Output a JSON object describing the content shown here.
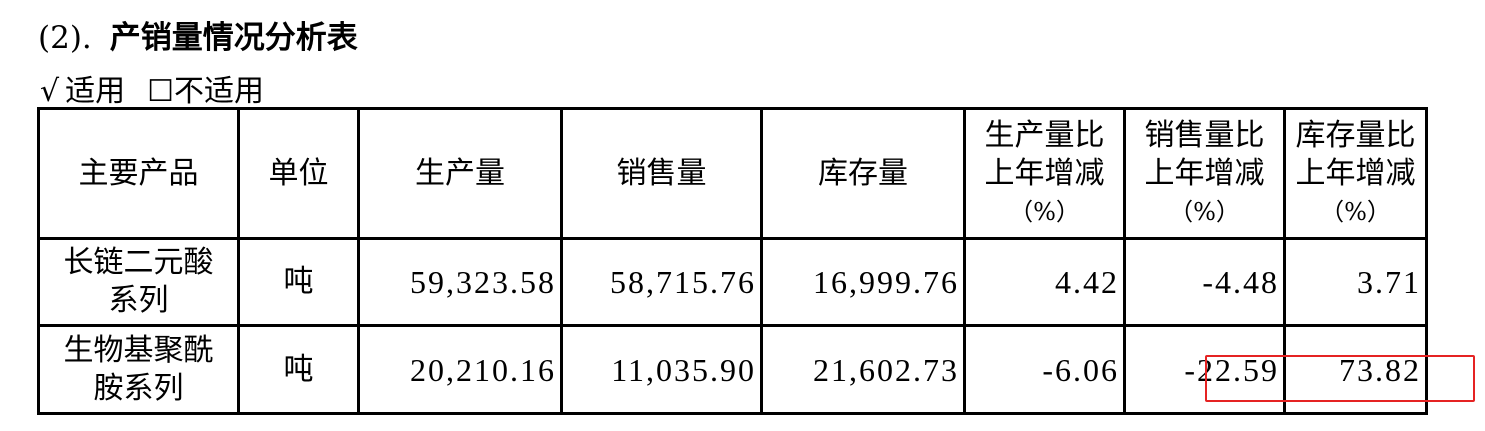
{
  "title": {
    "number": "(2).",
    "text": "产销量情况分析表"
  },
  "applicability": {
    "applicable_mark": "√",
    "applicable_label": "适用",
    "not_applicable_mark": "☐",
    "not_applicable_label": "不适用",
    "selected": "适用"
  },
  "table": {
    "headers": [
      "主要产品",
      "单位",
      "生产量",
      "销售量",
      "库存量",
      [
        "生产量比",
        "上年增减",
        "（%）"
      ],
      [
        "销售量比",
        "上年增减",
        "（%）"
      ],
      [
        "库存量比",
        "上年增减",
        "（%）"
      ]
    ],
    "rows": [
      {
        "product": [
          "长链二元酸",
          "系列"
        ],
        "unit": "吨",
        "production": "59,323.58",
        "sales": "58,715.76",
        "inventory": "16,999.76",
        "production_yoy": "4.42",
        "sales_yoy": "-4.48",
        "inventory_yoy": "3.71"
      },
      {
        "product": [
          "生物基聚酰",
          "胺系列"
        ],
        "unit": "吨",
        "production": "20,210.16",
        "sales": "11,035.90",
        "inventory": "21,602.73",
        "production_yoy": "-6.06",
        "sales_yoy": "-22.59",
        "inventory_yoy": "73.82"
      }
    ]
  },
  "highlight_color": "#e52323"
}
